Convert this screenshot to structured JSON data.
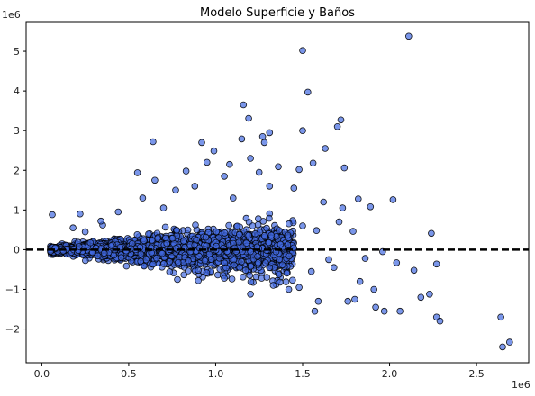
{
  "chart_data": {
    "type": "scatter",
    "title": "Modelo Superficie y Baños",
    "xlabel": "",
    "ylabel": "",
    "x_offset_label": "1e6",
    "y_offset_label": "1e6",
    "xlim": [
      -0.09,
      2.8
    ],
    "ylim": [
      -2.85,
      5.75
    ],
    "x_ticks": [
      0.0,
      0.5,
      1.0,
      1.5,
      2.0,
      2.5
    ],
    "x_tick_labels": [
      "0.0",
      "0.5",
      "1.0",
      "1.5",
      "2.0",
      "2.5"
    ],
    "y_ticks": [
      -2,
      -1,
      0,
      1,
      2,
      3,
      4,
      5
    ],
    "y_tick_labels": [
      "−2",
      "−1",
      "0",
      "1",
      "2",
      "3",
      "4",
      "5"
    ],
    "grid": false,
    "reference_line": {
      "y": 0,
      "style": "dashed",
      "color": "#000000"
    },
    "point_color": "#4169e1",
    "point_edge_color": "#000000",
    "point_alpha": 0.7,
    "points": [
      [
        2.11,
        5.38
      ],
      [
        1.5,
        5.02
      ],
      [
        1.53,
        3.97
      ],
      [
        1.16,
        3.65
      ],
      [
        1.72,
        3.27
      ],
      [
        1.19,
        3.31
      ],
      [
        1.5,
        3.0
      ],
      [
        1.31,
        2.95
      ],
      [
        1.27,
        2.85
      ],
      [
        1.15,
        2.79
      ],
      [
        0.64,
        2.72
      ],
      [
        1.63,
        2.55
      ],
      [
        0.92,
        2.7
      ],
      [
        1.7,
        3.1
      ],
      [
        1.28,
        2.7
      ],
      [
        0.99,
        2.49
      ],
      [
        1.56,
        2.18
      ],
      [
        1.74,
        2.06
      ],
      [
        1.2,
        2.3
      ],
      [
        0.95,
        2.2
      ],
      [
        1.08,
        2.15
      ],
      [
        0.83,
        1.98
      ],
      [
        0.55,
        1.94
      ],
      [
        1.48,
        2.02
      ],
      [
        1.36,
        2.09
      ],
      [
        1.05,
        1.85
      ],
      [
        1.31,
        1.6
      ],
      [
        1.45,
        1.55
      ],
      [
        1.62,
        1.2
      ],
      [
        1.73,
        1.05
      ],
      [
        1.82,
        1.28
      ],
      [
        2.02,
        1.26
      ],
      [
        1.89,
        1.08
      ],
      [
        1.71,
        0.7
      ],
      [
        2.24,
        0.41
      ],
      [
        0.65,
        1.75
      ],
      [
        0.58,
        1.3
      ],
      [
        0.44,
        0.95
      ],
      [
        0.22,
        0.9
      ],
      [
        0.06,
        0.88
      ],
      [
        0.35,
        0.62
      ],
      [
        1.5,
        0.6
      ],
      [
        1.58,
        0.48
      ],
      [
        1.79,
        0.46
      ],
      [
        1.96,
        -0.05
      ],
      [
        2.14,
        -0.52
      ],
      [
        2.27,
        -0.36
      ],
      [
        2.04,
        -0.33
      ],
      [
        1.86,
        -0.22
      ],
      [
        1.65,
        -0.25
      ],
      [
        1.55,
        -0.55
      ],
      [
        1.68,
        -0.45
      ],
      [
        1.48,
        -0.95
      ],
      [
        1.59,
        -1.3
      ],
      [
        1.57,
        -1.55
      ],
      [
        1.76,
        -1.3
      ],
      [
        1.8,
        -1.25
      ],
      [
        1.92,
        -1.45
      ],
      [
        1.97,
        -1.55
      ],
      [
        2.06,
        -1.55
      ],
      [
        2.18,
        -1.2
      ],
      [
        2.23,
        -1.12
      ],
      [
        2.27,
        -1.7
      ],
      [
        2.29,
        -1.8
      ],
      [
        2.64,
        -1.7
      ],
      [
        2.65,
        -2.45
      ],
      [
        2.69,
        -2.33
      ],
      [
        1.42,
        -1.0
      ],
      [
        1.37,
        -0.82
      ],
      [
        1.2,
        -1.12
      ],
      [
        1.91,
        -1.0
      ],
      [
        1.83,
        -0.8
      ],
      [
        0.9,
        -0.52
      ],
      [
        0.78,
        -0.75
      ],
      [
        1.05,
        -0.72
      ],
      [
        0.34,
        0.72
      ],
      [
        0.4,
        0.1
      ],
      [
        0.25,
        0.45
      ],
      [
        0.18,
        0.55
      ],
      [
        1.1,
        1.3
      ],
      [
        0.7,
        1.05
      ],
      [
        0.88,
        1.6
      ],
      [
        1.25,
        1.95
      ],
      [
        0.77,
        1.5
      ]
    ],
    "cluster": {
      "description_for_render": "dense band of points",
      "x_range": [
        0.05,
        1.45
      ]
    }
  }
}
